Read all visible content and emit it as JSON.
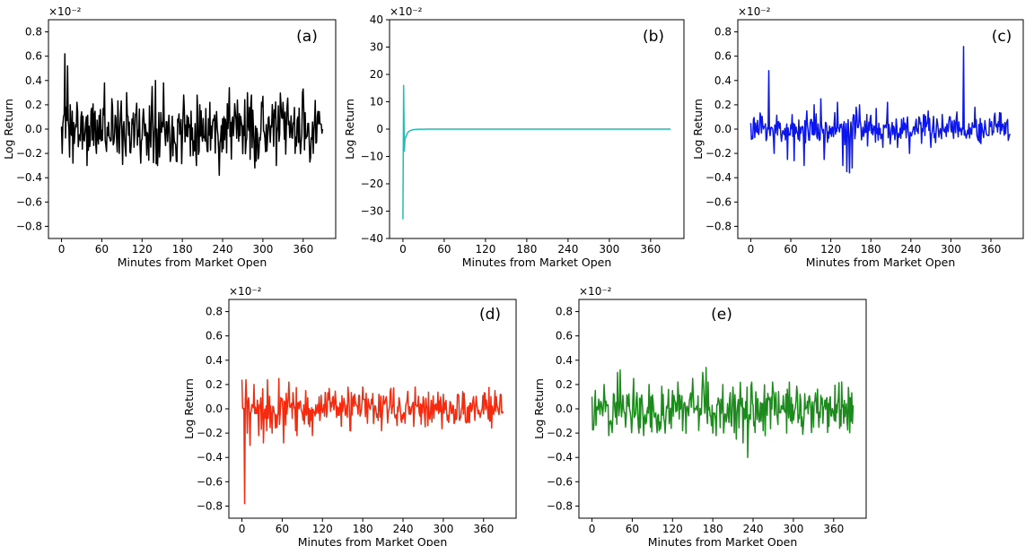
{
  "chart_data": [
    {
      "panel": "(a)",
      "type": "line",
      "x_range": [
        0,
        389
      ],
      "xticks": [
        0,
        60,
        120,
        180,
        240,
        300,
        360
      ],
      "xlabel": "Minutes from Market Open",
      "ylabel": "Log Return",
      "scale_label": "×10⁻²",
      "ylim": [
        -0.9,
        0.9
      ],
      "yticks": [
        -0.8,
        -0.6,
        -0.4,
        -0.2,
        0.0,
        0.2,
        0.4,
        0.6,
        0.8
      ],
      "ytick_labels": [
        "−0.8",
        "−0.6",
        "−0.4",
        "−0.2",
        "0.0",
        "0.2",
        "0.4",
        "0.6",
        "0.8"
      ],
      "series": [
        {
          "color": "#000000",
          "seed": 11,
          "amplitude": 0.13,
          "cap": 0.3,
          "keypoints": [
            [
              0,
              0.02
            ],
            [
              1,
              -0.2
            ],
            [
              3,
              0.1
            ],
            [
              5,
              0.62
            ],
            [
              7,
              0.18
            ],
            [
              9,
              0.52
            ],
            [
              11,
              0.0
            ],
            [
              13,
              0.2
            ],
            [
              17,
              -0.28
            ],
            [
              23,
              0.22
            ],
            [
              29,
              0.1
            ],
            [
              38,
              -0.3
            ],
            [
              52,
              -0.2
            ],
            [
              64,
              0.38
            ],
            [
              75,
              0.25
            ],
            [
              86,
              -0.2
            ],
            [
              97,
              0.3
            ],
            [
              118,
              -0.28
            ],
            [
              135,
              0.35
            ],
            [
              140,
              0.4
            ],
            [
              152,
              0.38
            ],
            [
              166,
              -0.22
            ],
            [
              182,
              0.28
            ],
            [
              206,
              0.2
            ],
            [
              221,
              0.22
            ],
            [
              235,
              -0.38
            ],
            [
              250,
              0.34
            ],
            [
              262,
              0.24
            ],
            [
              283,
              0.28
            ],
            [
              288,
              -0.32
            ],
            [
              298,
              0.22
            ],
            [
              330,
              0.22
            ],
            [
              348,
              -0.2
            ],
            [
              360,
              0.33
            ],
            [
              375,
              -0.2
            ],
            [
              385,
              0.05
            ],
            [
              389,
              0.0
            ]
          ]
        }
      ]
    },
    {
      "panel": "(b)",
      "type": "line",
      "x_range": [
        0,
        389
      ],
      "xticks": [
        0,
        60,
        120,
        180,
        240,
        300,
        360
      ],
      "xlabel": "Minutes from Market Open",
      "ylabel": "Log Return",
      "scale_label": "×10⁻²",
      "ylim": [
        -40,
        40
      ],
      "yticks": [
        -40,
        -30,
        -20,
        -10,
        0,
        10,
        20,
        30,
        40
      ],
      "ytick_labels": [
        "−40",
        "−30",
        "−20",
        "−10",
        "0",
        "10",
        "20",
        "30",
        "40"
      ],
      "series": [
        {
          "color": "#22bcb6",
          "seed": 0,
          "amplitude": 0.0,
          "cap": 0.0,
          "keypoints": [
            [
              0,
              -33
            ],
            [
              1,
              16
            ],
            [
              2,
              -8
            ],
            [
              3,
              -3.5
            ],
            [
              5,
              -2.4
            ],
            [
              7,
              -1.2
            ],
            [
              10,
              -0.6
            ],
            [
              15,
              -0.2
            ],
            [
              22,
              -0.05
            ],
            [
              40,
              0.0
            ],
            [
              389,
              0.0
            ]
          ]
        }
      ]
    },
    {
      "panel": "(c)",
      "type": "line",
      "x_range": [
        0,
        389
      ],
      "xticks": [
        0,
        60,
        120,
        180,
        240,
        300,
        360
      ],
      "xlabel": "Minutes from Market Open",
      "ylabel": "Log Return",
      "scale_label": "×10⁻²",
      "ylim": [
        -0.9,
        0.9
      ],
      "yticks": [
        -0.8,
        -0.6,
        -0.4,
        -0.2,
        0.0,
        0.2,
        0.4,
        0.6,
        0.8
      ],
      "ytick_labels": [
        "−0.8",
        "−0.6",
        "−0.4",
        "−0.2",
        "0.0",
        "0.2",
        "0.4",
        "0.6",
        "0.8"
      ],
      "series": [
        {
          "color": "#0b16ee",
          "seed": 23,
          "amplitude": 0.06,
          "cap": 0.15,
          "keypoints": [
            [
              0,
              0.05
            ],
            [
              2,
              -0.06
            ],
            [
              4,
              0.08
            ],
            [
              8,
              0.0
            ],
            [
              26,
              0.0
            ],
            [
              27,
              0.48
            ],
            [
              28,
              0.0
            ],
            [
              35,
              -0.2
            ],
            [
              55,
              -0.25
            ],
            [
              65,
              -0.26
            ],
            [
              80,
              -0.3
            ],
            [
              84,
              0.15
            ],
            [
              95,
              0.2
            ],
            [
              105,
              0.25
            ],
            [
              110,
              -0.25
            ],
            [
              130,
              0.22
            ],
            [
              138,
              -0.3
            ],
            [
              144,
              -0.35
            ],
            [
              148,
              -0.36
            ],
            [
              152,
              -0.32
            ],
            [
              158,
              0.18
            ],
            [
              163,
              0.2
            ],
            [
              174,
              0.12
            ],
            [
              188,
              0.17
            ],
            [
              198,
              -0.15
            ],
            [
              205,
              0.22
            ],
            [
              220,
              -0.15
            ],
            [
              238,
              -0.2
            ],
            [
              260,
              0.12
            ],
            [
              270,
              -0.15
            ],
            [
              287,
              0.12
            ],
            [
              300,
              0.0
            ],
            [
              318,
              0.0
            ],
            [
              319,
              0.68
            ],
            [
              320,
              -0.05
            ],
            [
              336,
              0.18
            ],
            [
              345,
              -0.12
            ],
            [
              365,
              0.1
            ],
            [
              380,
              -0.05
            ],
            [
              389,
              -0.04
            ]
          ]
        }
      ]
    },
    {
      "panel": "(d)",
      "type": "line",
      "x_range": [
        0,
        389
      ],
      "xticks": [
        0,
        60,
        120,
        180,
        240,
        300,
        360
      ],
      "xlabel": "Minutes from Market Open",
      "ylabel": "Log Return",
      "scale_label": "×10⁻²",
      "ylim": [
        -0.9,
        0.9
      ],
      "yticks": [
        -0.8,
        -0.6,
        -0.4,
        -0.2,
        0.0,
        0.2,
        0.4,
        0.6,
        0.8
      ],
      "ytick_labels": [
        "−0.8",
        "−0.6",
        "−0.4",
        "−0.2",
        "0.0",
        "0.2",
        "0.4",
        "0.6",
        "0.8"
      ],
      "series": [
        {
          "color": "#f52a0f",
          "seed": 37,
          "amplitude": 0.08,
          "cap": 0.18,
          "keypoints": [
            [
              0,
              0.24
            ],
            [
              2,
              0.0
            ],
            [
              4,
              -0.78
            ],
            [
              6,
              0.24
            ],
            [
              8,
              -0.2
            ],
            [
              12,
              -0.3
            ],
            [
              18,
              0.2
            ],
            [
              25,
              -0.22
            ],
            [
              32,
              -0.28
            ],
            [
              38,
              0.24
            ],
            [
              45,
              -0.2
            ],
            [
              55,
              0.25
            ],
            [
              62,
              -0.28
            ],
            [
              70,
              0.22
            ],
            [
              82,
              -0.22
            ],
            [
              95,
              0.15
            ],
            [
              105,
              -0.22
            ],
            [
              115,
              0.1
            ],
            [
              140,
              0.06
            ],
            [
              168,
              0.12
            ],
            [
              180,
              0.18
            ],
            [
              196,
              -0.12
            ],
            [
              215,
              0.1
            ],
            [
              240,
              -0.08
            ],
            [
              270,
              0.1
            ],
            [
              300,
              0.12
            ],
            [
              320,
              -0.08
            ],
            [
              345,
              0.1
            ],
            [
              370,
              -0.1
            ],
            [
              385,
              0.12
            ],
            [
              389,
              -0.02
            ]
          ]
        }
      ]
    },
    {
      "panel": "(e)",
      "type": "line",
      "x_range": [
        0,
        389
      ],
      "xticks": [
        0,
        60,
        120,
        180,
        240,
        300,
        360
      ],
      "xlabel": "Minutes from Market Open",
      "ylabel": "Log Return",
      "scale_label": "×10⁻²",
      "ylim": [
        -0.9,
        0.9
      ],
      "yticks": [
        -0.8,
        -0.6,
        -0.4,
        -0.2,
        0.0,
        0.2,
        0.4,
        0.6,
        0.8
      ],
      "ytick_labels": [
        "−0.8",
        "−0.6",
        "−0.4",
        "−0.2",
        "0.0",
        "0.2",
        "0.4",
        "0.6",
        "0.8"
      ],
      "series": [
        {
          "color": "#1d8a1d",
          "seed": 51,
          "amplitude": 0.1,
          "cap": 0.22,
          "keypoints": [
            [
              0,
              0.1
            ],
            [
              3,
              -0.12
            ],
            [
              10,
              0.08
            ],
            [
              18,
              0.2
            ],
            [
              25,
              -0.22
            ],
            [
              38,
              0.3
            ],
            [
              42,
              0.32
            ],
            [
              50,
              -0.15
            ],
            [
              62,
              0.25
            ],
            [
              70,
              -0.2
            ],
            [
              85,
              0.2
            ],
            [
              100,
              -0.18
            ],
            [
              120,
              0.15
            ],
            [
              135,
              -0.18
            ],
            [
              150,
              0.25
            ],
            [
              165,
              0.3
            ],
            [
              170,
              0.34
            ],
            [
              180,
              -0.2
            ],
            [
              195,
              0.2
            ],
            [
              215,
              -0.25
            ],
            [
              225,
              -0.28
            ],
            [
              232,
              -0.4
            ],
            [
              238,
              0.22
            ],
            [
              255,
              -0.18
            ],
            [
              270,
              0.15
            ],
            [
              290,
              -0.2
            ],
            [
              310,
              0.12
            ],
            [
              330,
              -0.15
            ],
            [
              355,
              0.1
            ],
            [
              375,
              -0.12
            ],
            [
              389,
              0.03
            ]
          ]
        }
      ]
    }
  ],
  "panel_labels": [
    "(a)",
    "(b)",
    "(c)",
    "(d)",
    "(e)"
  ]
}
